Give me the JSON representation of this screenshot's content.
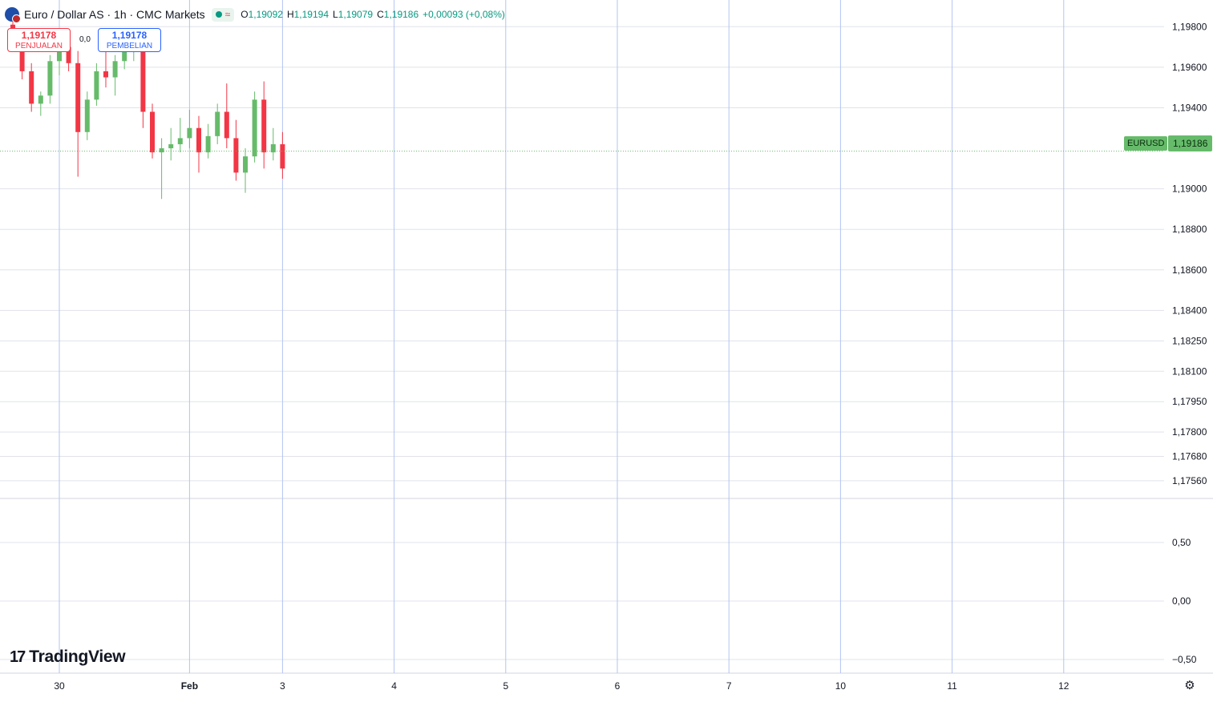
{
  "legend": {
    "title": "Euro / Dollar AS · 1h · CMC Markets",
    "open_label": "O",
    "open": "1,19092",
    "high_label": "H",
    "high": "1,19194",
    "low_label": "L",
    "low": "1,19079",
    "close_label": "C",
    "close": "1,19186",
    "change": "+0,00093 (+0,08%)",
    "status_icon": "market-open-dot",
    "wave_icon": "≈"
  },
  "trade": {
    "sell_price": "1,19178",
    "sell_label": "PENJUALAN",
    "buy_price": "1,19178",
    "buy_label": "PEMBELIAN",
    "spread": "0,0"
  },
  "branding": {
    "logo_text": "TradingView",
    "logo_mark": "17"
  },
  "colors": {
    "up": "#66bb6a",
    "down": "#f23645",
    "grid": "#e0e3eb",
    "day_line": "#b2c5f0",
    "price_line": "#66bb6a"
  },
  "chart_data": {
    "type": "candlestick",
    "symbol": "EURUSD",
    "timeframe": "1h",
    "last_price": "1,19186",
    "price_ticks": [
      {
        "label": "1,19800",
        "value": 1.198
      },
      {
        "label": "1,19600",
        "value": 1.196
      },
      {
        "label": "1,19400",
        "value": 1.194
      },
      {
        "label": "1,19000",
        "value": 1.19
      },
      {
        "label": "1,18800",
        "value": 1.188
      },
      {
        "label": "1,18600",
        "value": 1.186
      },
      {
        "label": "1,18400",
        "value": 1.184
      },
      {
        "label": "1,18250",
        "value": 1.1825
      },
      {
        "label": "1,18100",
        "value": 1.181
      },
      {
        "label": "1,17950",
        "value": 1.1795
      },
      {
        "label": "1,17800",
        "value": 1.178
      },
      {
        "label": "1,17680",
        "value": 1.1768
      },
      {
        "label": "1,17560",
        "value": 1.1756
      }
    ],
    "indicator_ticks": [
      {
        "label": "0,50",
        "value": 0.5
      },
      {
        "label": "0,00",
        "value": 0.0
      },
      {
        "label": "−0,50",
        "value": -0.5
      }
    ],
    "time_labels": [
      {
        "label": "30",
        "index": 5
      },
      {
        "label": "Feb",
        "index": 19
      },
      {
        "label": "3",
        "index": 29
      },
      {
        "label": "4",
        "index": 41
      },
      {
        "label": "5",
        "index": 53
      },
      {
        "label": "6",
        "index": 65
      },
      {
        "label": "7",
        "index": 77
      },
      {
        "label": "10",
        "index": 89
      },
      {
        "label": "11",
        "index": 101
      },
      {
        "label": "12",
        "index": 113
      }
    ],
    "candles": [
      {
        "o": 1.1981,
        "h": 1.1988,
        "l": 1.1968,
        "c": 1.1976
      },
      {
        "o": 1.1976,
        "h": 1.1979,
        "l": 1.1954,
        "c": 1.1958
      },
      {
        "o": 1.1958,
        "h": 1.1962,
        "l": 1.1938,
        "c": 1.1942
      },
      {
        "o": 1.1942,
        "h": 1.1948,
        "l": 1.1936,
        "c": 1.1946
      },
      {
        "o": 1.1946,
        "h": 1.1966,
        "l": 1.1942,
        "c": 1.1963
      },
      {
        "o": 1.1963,
        "h": 1.1975,
        "l": 1.1956,
        "c": 1.197
      },
      {
        "o": 1.197,
        "h": 1.1977,
        "l": 1.1958,
        "c": 1.1962
      },
      {
        "o": 1.1962,
        "h": 1.1968,
        "l": 1.1906,
        "c": 1.1928
      },
      {
        "o": 1.1928,
        "h": 1.1948,
        "l": 1.1924,
        "c": 1.1944
      },
      {
        "o": 1.1944,
        "h": 1.1962,
        "l": 1.1941,
        "c": 1.1958
      },
      {
        "o": 1.1958,
        "h": 1.1968,
        "l": 1.195,
        "c": 1.1955
      },
      {
        "o": 1.1955,
        "h": 1.1966,
        "l": 1.1946,
        "c": 1.1963
      },
      {
        "o": 1.1963,
        "h": 1.1972,
        "l": 1.1959,
        "c": 1.1969
      },
      {
        "o": 1.1969,
        "h": 1.1975,
        "l": 1.1963,
        "c": 1.1973
      },
      {
        "o": 1.1973,
        "h": 1.1976,
        "l": 1.193,
        "c": 1.1938
      },
      {
        "o": 1.1938,
        "h": 1.1942,
        "l": 1.1915,
        "c": 1.1918
      },
      {
        "o": 1.1918,
        "h": 1.1925,
        "l": 1.1895,
        "c": 1.192
      },
      {
        "o": 1.192,
        "h": 1.193,
        "l": 1.1914,
        "c": 1.1922
      },
      {
        "o": 1.1922,
        "h": 1.1935,
        "l": 1.1918,
        "c": 1.1925
      },
      {
        "o": 1.1925,
        "h": 1.1939,
        "l": 1.192,
        "c": 1.193
      },
      {
        "o": 1.193,
        "h": 1.1936,
        "l": 1.1908,
        "c": 1.1918
      },
      {
        "o": 1.1918,
        "h": 1.1932,
        "l": 1.1915,
        "c": 1.1926
      },
      {
        "o": 1.1926,
        "h": 1.1942,
        "l": 1.1922,
        "c": 1.1938
      },
      {
        "o": 1.1938,
        "h": 1.1952,
        "l": 1.192,
        "c": 1.1925
      },
      {
        "o": 1.1925,
        "h": 1.1934,
        "l": 1.1904,
        "c": 1.1908
      },
      {
        "o": 1.1908,
        "h": 1.192,
        "l": 1.1898,
        "c": 1.1916
      },
      {
        "o": 1.1916,
        "h": 1.1948,
        "l": 1.1913,
        "c": 1.1944
      },
      {
        "o": 1.1944,
        "h": 1.1953,
        "l": 1.191,
        "c": 1.1918
      },
      {
        "o": 1.1918,
        "h": 1.193,
        "l": 1.1914,
        "c": 1.1922
      },
      {
        "o": 1.1922,
        "h": 1.1928,
        "l": 1.1905,
        "c": 1.191
      }
    ]
  }
}
